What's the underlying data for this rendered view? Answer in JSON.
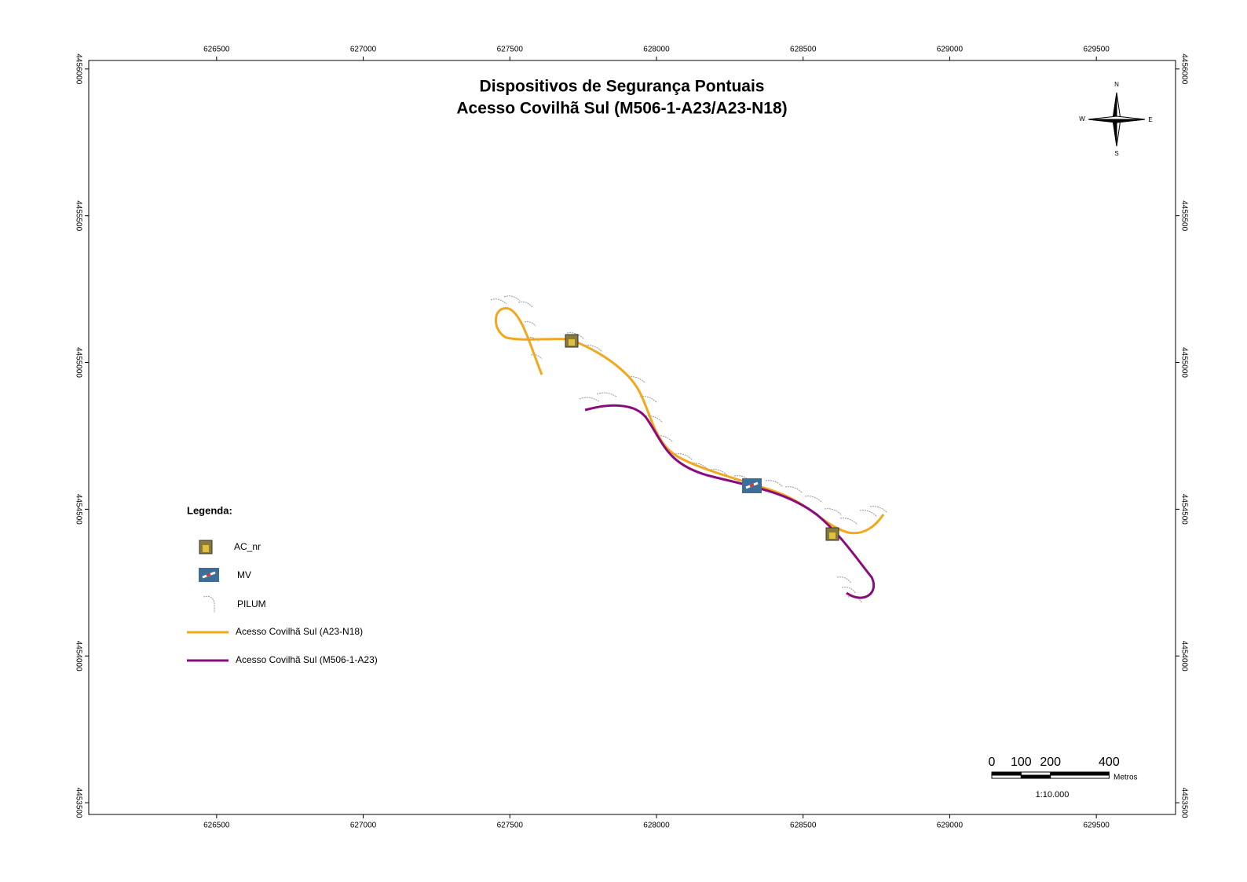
{
  "map": {
    "title": [
      "Dispositivos de Segurança Pontuais",
      "Acesso Covilhã Sul (M506-1-A23/A23-N18)"
    ],
    "xlim": [
      626064,
      629770
    ],
    "ylim": [
      4453460,
      4456029
    ],
    "xticks": [
      626500,
      627000,
      627500,
      628000,
      628500,
      629000,
      629500
    ],
    "yticks": [
      4453500,
      4454000,
      4454500,
      4455000,
      4455500,
      4456000
    ],
    "legend": {
      "title": "Legenda:",
      "items": [
        {
          "label": "AC_nr"
        },
        {
          "label": "MV"
        },
        {
          "label": "PILUM"
        },
        {
          "label": "Acesso Covilhã Sul (A23-N18)",
          "color": "#f2a81d"
        },
        {
          "label": "Acesso Covilhã Sul (M506-1-A23)",
          "color": "#8b0a7e"
        }
      ]
    },
    "compass": {
      "n": "N",
      "s": "S",
      "w": "W",
      "e": "E"
    },
    "scale_bar": {
      "ticks": [
        0,
        100,
        200,
        400
      ],
      "unit": "Metros",
      "ratio": "1:10.000"
    }
  }
}
